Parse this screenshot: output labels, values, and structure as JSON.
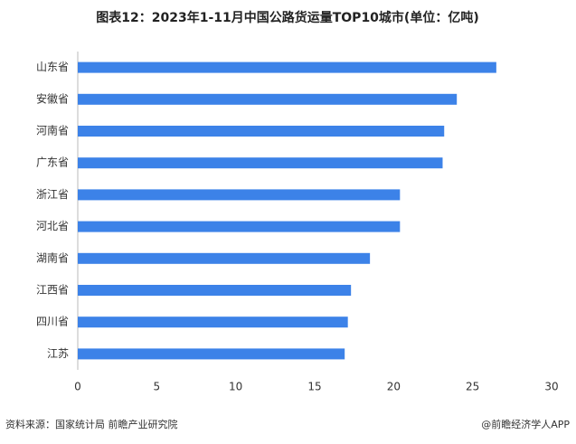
{
  "chart_data": {
    "type": "bar",
    "orientation": "horizontal",
    "title": "图表12：2023年1-11月中国公路货运量TOP10城市(单位：亿吨)",
    "categories": [
      "山东省",
      "安徽省",
      "河南省",
      "广东省",
      "浙江省",
      "河北省",
      "湖南省",
      "江西省",
      "四川省",
      "江苏"
    ],
    "values": [
      26.5,
      24.0,
      23.2,
      23.1,
      20.4,
      20.4,
      18.5,
      17.3,
      17.1,
      16.9
    ],
    "color": "#3c82e8",
    "xlim": [
      0,
      30
    ],
    "xticks": [
      0,
      5,
      10,
      15,
      20,
      25,
      30
    ],
    "grid": false,
    "source": "资料来源：国家统计局 前瞻产业研究院",
    "credit": "@前瞻经济学人APP"
  }
}
